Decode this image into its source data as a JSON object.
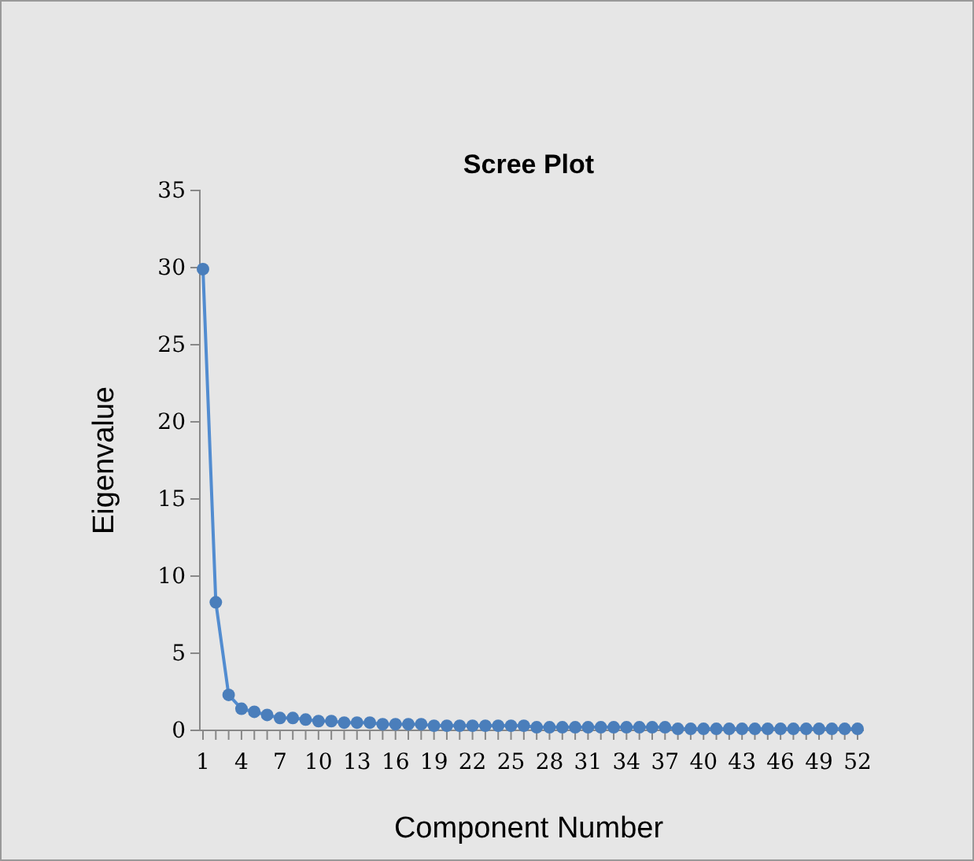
{
  "chart_data": {
    "type": "line",
    "title": "Scree Plot",
    "xlabel": "Component Number",
    "ylabel": "Eigenvalue",
    "categories": [
      "1",
      null,
      null,
      "4",
      null,
      null,
      "7",
      null,
      null,
      "10",
      null,
      null,
      "13",
      null,
      null,
      "16",
      null,
      null,
      "19",
      null,
      null,
      "22",
      null,
      null,
      "25",
      null,
      null,
      "28",
      null,
      null,
      "31",
      null,
      null,
      "34",
      null,
      null,
      "37",
      null,
      null,
      "40",
      null,
      null,
      "43",
      null,
      null,
      "46",
      null,
      null,
      "49",
      null,
      null,
      "52"
    ],
    "series": [
      {
        "color": "#4a7ebb",
        "values": [
          29.9,
          8.3,
          2.3,
          1.4,
          1.2,
          1.0,
          0.8,
          0.8,
          0.7,
          0.6,
          0.6,
          0.5,
          0.5,
          0.5,
          0.4,
          0.4,
          0.4,
          0.4,
          0.3,
          0.3,
          0.3,
          0.3,
          0.3,
          0.3,
          0.3,
          0.3,
          0.2,
          0.2,
          0.2,
          0.2,
          0.2,
          0.2,
          0.2,
          0.2,
          0.2,
          0.2,
          0.2,
          0.1,
          0.1,
          0.1,
          0.1,
          0.1,
          0.1,
          0.1,
          0.1,
          0.1,
          0.1,
          0.1,
          0.1,
          0.1,
          0.1,
          0.1
        ]
      }
    ],
    "ylim": [
      0,
      35
    ],
    "yticks": [
      0,
      5,
      10,
      15,
      20,
      25,
      30,
      35
    ],
    "marker": "circle",
    "line_style": "solid",
    "grid": false
  }
}
